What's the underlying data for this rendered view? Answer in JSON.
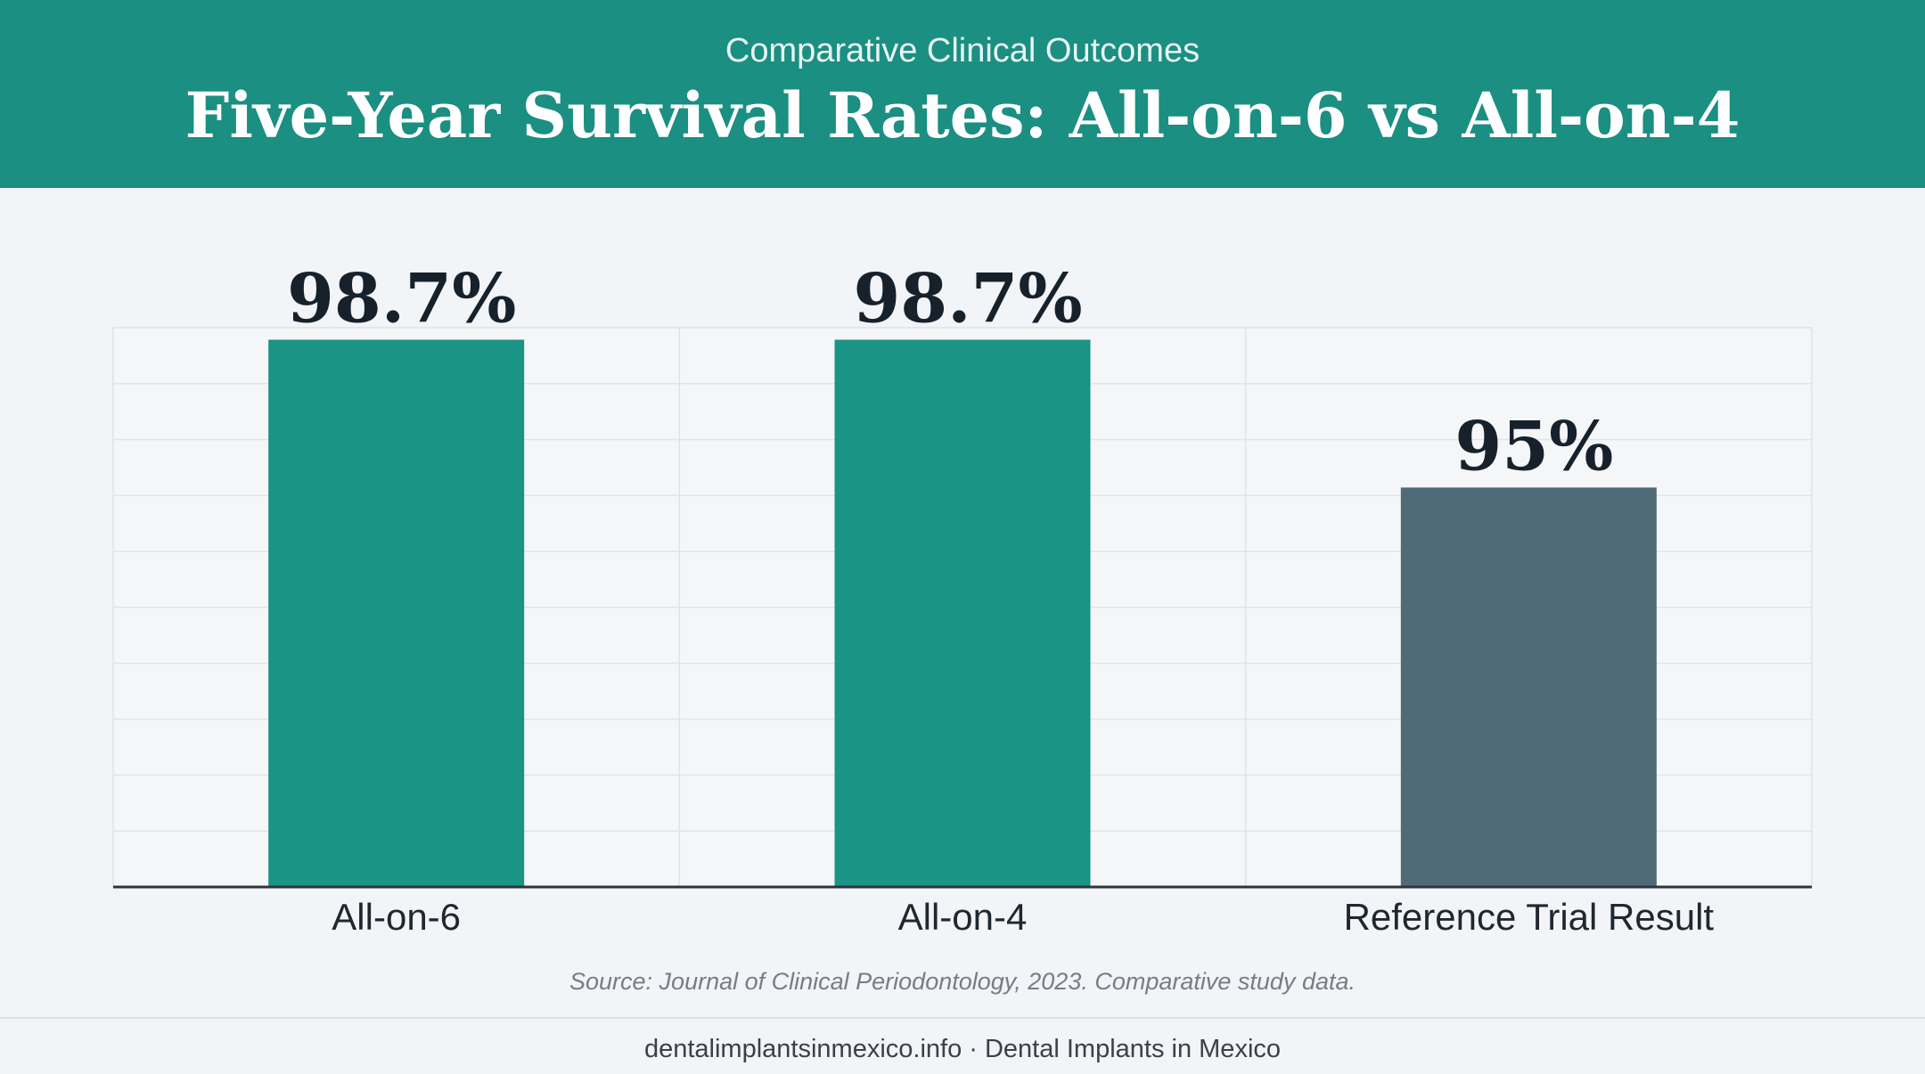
{
  "header": {
    "subtitle": "Comparative Clinical Outcomes",
    "title": "Five-Year Survival Rates: All-on-6 vs All-on-4"
  },
  "chart_data": {
    "type": "bar",
    "categories": [
      "All-on-6",
      "All-on-4",
      "Reference Trial Result"
    ],
    "values": [
      98.7,
      98.7,
      95
    ],
    "value_labels": [
      "98.7%",
      "98.7%",
      "95%"
    ],
    "colors": [
      "#1a9484",
      "#1a9484",
      "#4f6b77"
    ],
    "xlabel": "",
    "ylabel": "",
    "ylim": [
      85,
      99
    ],
    "grid": true,
    "legend": "none"
  },
  "source": "Source: Journal of Clinical Periodontology, 2023. Comparative study data.",
  "footer": "dentalimplantsinmexico.info · Dental Implants in Mexico"
}
